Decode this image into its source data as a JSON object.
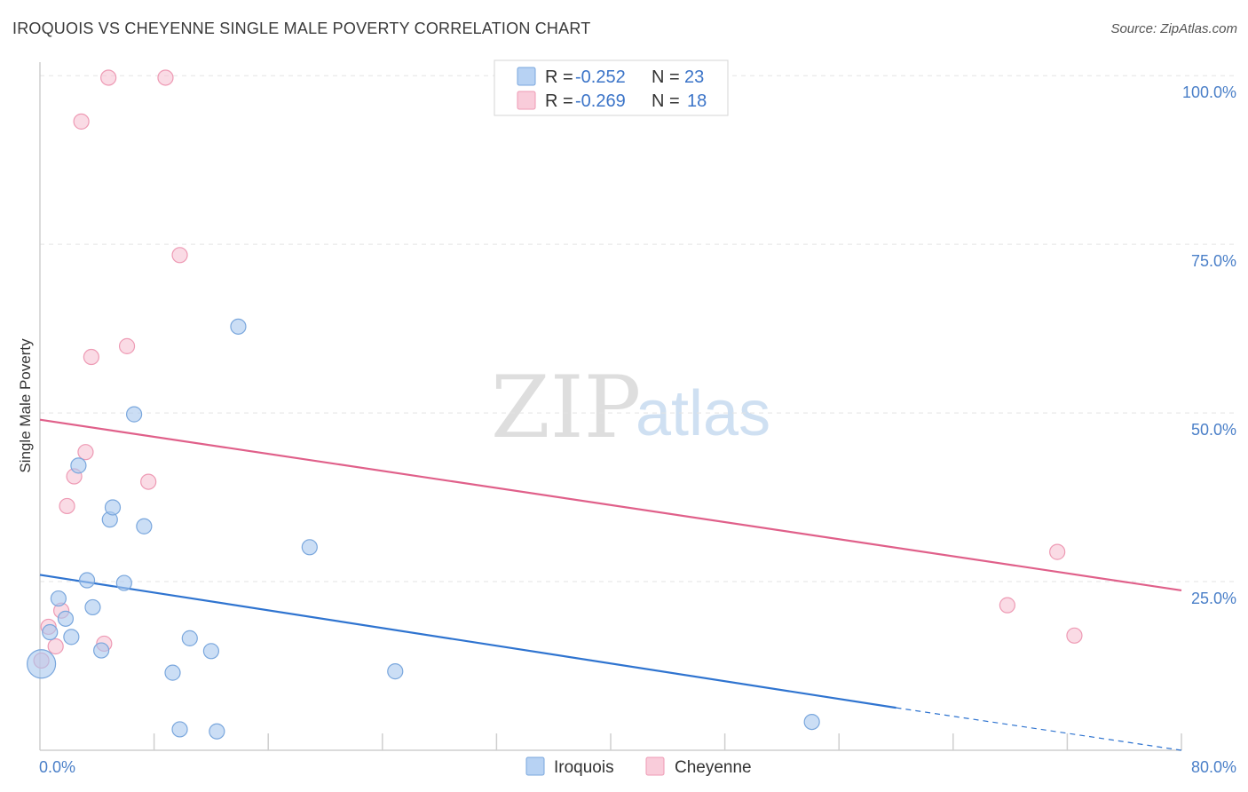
{
  "chart_data": {
    "type": "scatter",
    "title": "IROQUOIS VS CHEYENNE SINGLE MALE POVERTY CORRELATION CHART",
    "source": "Source: ZipAtlas.com",
    "ylabel": "Single Male Poverty",
    "xlim": [
      0,
      80
    ],
    "ylim": [
      0,
      102
    ],
    "x_tick_labels": [
      "0.0%",
      "80.0%"
    ],
    "y_ticks": [
      25,
      50,
      75,
      100
    ],
    "y_tick_labels": [
      "25.0%",
      "50.0%",
      "75.0%",
      "100.0%"
    ],
    "watermark": {
      "part1": "ZIP",
      "part2": "atlas"
    },
    "legend": {
      "rows": [
        {
          "r_label": "R =",
          "r_value": "-0.252",
          "n_label": "N =",
          "n_value": "23"
        },
        {
          "r_label": "R =",
          "r_value": "-0.269",
          "n_label": "N =",
          "n_value": "18"
        }
      ]
    },
    "series": [
      {
        "name": "Iroquois",
        "color": "#a9c8ee",
        "stroke": "#7aa7dd",
        "line_color": "#2f74d0",
        "trend": {
          "x0": 0,
          "y0": 26.0,
          "x1": 60,
          "y1": 6.3,
          "x_dash_end": 80,
          "y_dash_end": 0
        },
        "points": [
          {
            "x": 0.1,
            "y": 12.8,
            "big": true
          },
          {
            "x": 0.7,
            "y": 17.5
          },
          {
            "x": 1.3,
            "y": 22.5
          },
          {
            "x": 1.8,
            "y": 19.5
          },
          {
            "x": 2.2,
            "y": 16.8
          },
          {
            "x": 2.7,
            "y": 42.2
          },
          {
            "x": 3.3,
            "y": 25.2
          },
          {
            "x": 3.7,
            "y": 21.2
          },
          {
            "x": 4.3,
            "y": 14.8
          },
          {
            "x": 4.9,
            "y": 34.2
          },
          {
            "x": 5.1,
            "y": 36.0
          },
          {
            "x": 5.9,
            "y": 24.8
          },
          {
            "x": 6.6,
            "y": 49.8
          },
          {
            "x": 7.3,
            "y": 33.2
          },
          {
            "x": 9.3,
            "y": 11.5
          },
          {
            "x": 9.8,
            "y": 3.1
          },
          {
            "x": 10.5,
            "y": 16.6
          },
          {
            "x": 12.0,
            "y": 14.7
          },
          {
            "x": 12.4,
            "y": 2.8
          },
          {
            "x": 13.9,
            "y": 62.8
          },
          {
            "x": 18.9,
            "y": 30.1
          },
          {
            "x": 24.9,
            "y": 11.7
          },
          {
            "x": 54.1,
            "y": 4.2
          }
        ]
      },
      {
        "name": "Cheyenne",
        "color": "#f7c3d3",
        "stroke": "#ee9ab4",
        "line_color": "#e0608a",
        "trend": {
          "x0": 0,
          "y0": 49.0,
          "x1": 80,
          "y1": 23.7
        },
        "points": [
          {
            "x": 0.1,
            "y": 13.3
          },
          {
            "x": 0.6,
            "y": 18.3
          },
          {
            "x": 1.1,
            "y": 15.4
          },
          {
            "x": 1.5,
            "y": 20.7
          },
          {
            "x": 1.9,
            "y": 36.2
          },
          {
            "x": 2.4,
            "y": 40.6
          },
          {
            "x": 2.9,
            "y": 93.2
          },
          {
            "x": 3.2,
            "y": 44.2
          },
          {
            "x": 3.6,
            "y": 58.3
          },
          {
            "x": 4.5,
            "y": 15.8
          },
          {
            "x": 4.8,
            "y": 99.7
          },
          {
            "x": 6.1,
            "y": 59.9
          },
          {
            "x": 7.6,
            "y": 39.8
          },
          {
            "x": 8.8,
            "y": 99.7
          },
          {
            "x": 9.8,
            "y": 73.4
          },
          {
            "x": 67.8,
            "y": 21.5
          },
          {
            "x": 71.3,
            "y": 29.4
          },
          {
            "x": 72.5,
            "y": 17.0
          }
        ]
      }
    ]
  }
}
